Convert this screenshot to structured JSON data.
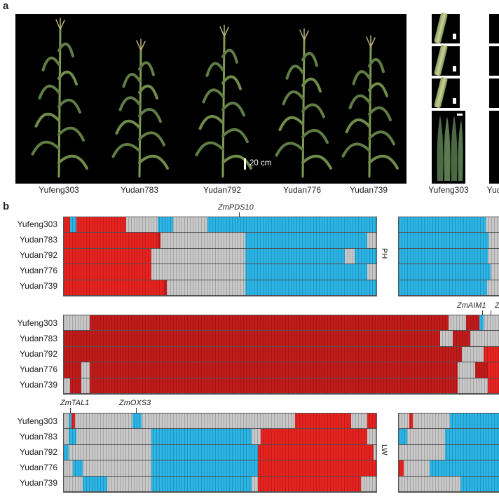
{
  "panel_a": {
    "letter": "a",
    "scale_label": "20 cm",
    "plants": [
      "Yufeng303",
      "Yudan783",
      "Yudan792",
      "Yudan776",
      "Yudan739"
    ],
    "right_labels": [
      "Yufeng303",
      "Yud"
    ]
  },
  "panel_b": {
    "letter": "b",
    "rows": [
      "Yufeng303",
      "Yudan783",
      "Yudan792",
      "Yudan776",
      "Yudan739"
    ],
    "colors": {
      "red": "#e8231f",
      "darkred": "#c21b1b",
      "blue": "#2bb5e6",
      "grey": "#c8c8c8"
    },
    "blocks": [
      {
        "trait": "PH",
        "genes": [
          "ZmPDS10"
        ],
        "rows": [
          [
            [
              "blue",
              0,
              0.015
            ],
            [
              "red",
              0,
              0.02
            ],
            [
              "blue",
              0.02,
              0.04
            ],
            [
              "red",
              0.04,
              0.2
            ],
            [
              "grey",
              0.2,
              0.3
            ],
            [
              "blue",
              0.3,
              0.35
            ],
            [
              "grey",
              0.35,
              0.46
            ],
            [
              "blue",
              0.46,
              0.6
            ],
            [
              "blue",
              0.6,
              1
            ]
          ],
          [
            [
              "red",
              0,
              0.3
            ],
            [
              "darkred",
              0.3,
              0.31
            ],
            [
              "grey",
              0.31,
              0.58
            ],
            [
              "blue",
              0.58,
              0.97
            ],
            [
              "grey",
              0.97,
              1
            ]
          ],
          [
            [
              "red",
              0,
              0.28
            ],
            [
              "grey",
              0.28,
              0.58
            ],
            [
              "blue",
              0.58,
              0.9
            ],
            [
              "grey",
              0.9,
              0.93
            ],
            [
              "blue",
              0.93,
              1
            ]
          ],
          [
            [
              "red",
              0,
              0.28
            ],
            [
              "grey",
              0.28,
              0.58
            ],
            [
              "blue",
              0.58,
              0.97
            ],
            [
              "grey",
              0.97,
              1
            ]
          ],
          [
            [
              "red",
              0,
              0.32
            ],
            [
              "darkred",
              0.32,
              0.33
            ],
            [
              "grey",
              0.33,
              0.58
            ],
            [
              "blue",
              0.58,
              1
            ]
          ]
        ]
      },
      {
        "trait": "",
        "genes": [
          "ZmAIM1",
          "Z"
        ],
        "rows": [
          [
            [
              "grey",
              0,
              0.06
            ],
            [
              "darkred",
              0.06,
              0.88
            ],
            [
              "grey",
              0.88,
              0.92
            ],
            [
              "darkred",
              0.92,
              0.95
            ],
            [
              "blue",
              0.95,
              0.96
            ],
            [
              "grey",
              0.96,
              1
            ]
          ],
          [
            [
              "darkred",
              0,
              0.86
            ],
            [
              "grey",
              0.86,
              0.89
            ],
            [
              "darkred",
              0.89,
              0.93
            ],
            [
              "grey",
              0.93,
              1
            ]
          ],
          [
            [
              "darkred",
              0,
              0.91
            ],
            [
              "grey",
              0.91,
              0.96
            ],
            [
              "red",
              0.96,
              1
            ]
          ],
          [
            [
              "darkred",
              0,
              0.04
            ],
            [
              "grey",
              0.04,
              0.06
            ],
            [
              "darkred",
              0.06,
              0.9
            ],
            [
              "grey",
              0.9,
              0.94
            ],
            [
              "darkred",
              0.94,
              0.97
            ],
            [
              "red",
              0.97,
              1
            ]
          ],
          [
            [
              "grey",
              0,
              0.015
            ],
            [
              "darkred",
              0.015,
              0.04
            ],
            [
              "grey",
              0.04,
              0.06
            ],
            [
              "darkred",
              0.06,
              0.9
            ],
            [
              "grey",
              0.9,
              0.97
            ],
            [
              "red",
              0.97,
              1
            ]
          ]
        ]
      },
      {
        "trait": "LW",
        "genes": [
          "ZmTAL1",
          "ZmOXS3"
        ],
        "rows": [
          [
            [
              "grey",
              0,
              0.015
            ],
            [
              "blue",
              0.015,
              0.025
            ],
            [
              "red",
              0.025,
              0.035
            ],
            [
              "grey",
              0.035,
              0.22
            ],
            [
              "blue",
              0.22,
              0.25
            ],
            [
              "grey",
              0.25,
              0.74
            ],
            [
              "red",
              0.74,
              0.92
            ],
            [
              "grey",
              0.92,
              0.97
            ],
            [
              "red",
              0.97,
              1
            ]
          ],
          [
            [
              "grey",
              0,
              0.015
            ],
            [
              "blue",
              0.015,
              0.04
            ],
            [
              "grey",
              0.04,
              0.28
            ],
            [
              "blue",
              0.28,
              0.6
            ],
            [
              "grey",
              0.6,
              0.63
            ],
            [
              "red",
              0.63,
              0.97
            ],
            [
              "grey",
              0.97,
              1
            ]
          ],
          [
            [
              "blue",
              0,
              0.015
            ],
            [
              "grey",
              0.015,
              0.28
            ],
            [
              "blue",
              0.28,
              0.62
            ],
            [
              "red",
              0.62,
              0.99
            ],
            [
              "grey",
              0.99,
              1
            ]
          ],
          [
            [
              "grey",
              0,
              0.03
            ],
            [
              "blue",
              0.03,
              0.06
            ],
            [
              "grey",
              0.06,
              0.28
            ],
            [
              "blue",
              0.28,
              0.62
            ],
            [
              "red",
              0.62,
              1
            ]
          ],
          [
            [
              "grey",
              0,
              0.06
            ],
            [
              "blue",
              0.06,
              0.14
            ],
            [
              "grey",
              0.14,
              0.28
            ],
            [
              "blue",
              0.28,
              0.6
            ],
            [
              "grey",
              0.6,
              0.62
            ],
            [
              "red",
              0.62,
              0.95
            ],
            [
              "grey",
              0.95,
              1
            ]
          ]
        ]
      }
    ],
    "right_blocks": [
      {
        "rows": [
          [
            [
              "blue",
              0,
              0.85
            ],
            [
              "grey",
              0.85,
              1
            ]
          ],
          [
            [
              "blue",
              0,
              0.88
            ],
            [
              "grey",
              0.88,
              1
            ]
          ],
          [
            [
              "blue",
              0,
              0.87
            ],
            [
              "grey",
              0.87,
              1
            ]
          ],
          [
            [
              "blue",
              0,
              0.9
            ],
            [
              "grey",
              0.9,
              1
            ]
          ],
          [
            [
              "blue",
              0,
              0.86
            ],
            [
              "grey",
              0.86,
              1
            ]
          ]
        ]
      },
      {
        "rows": [
          [
            [
              "grey",
              0,
              0.1
            ],
            [
              "red",
              0.1,
              0.14
            ],
            [
              "grey",
              0.14,
              0.5
            ],
            [
              "blue",
              0.5,
              1
            ]
          ],
          [
            [
              "blue",
              0,
              0.08
            ],
            [
              "grey",
              0.08,
              0.45
            ],
            [
              "blue",
              0.45,
              1
            ]
          ],
          [
            [
              "grey",
              0,
              0.45
            ],
            [
              "blue",
              0.45,
              1
            ]
          ],
          [
            [
              "red",
              0,
              0.05
            ],
            [
              "grey",
              0.05,
              0.3
            ],
            [
              "blue",
              0.3,
              1
            ]
          ],
          [
            [
              "grey",
              0,
              0.6
            ],
            [
              "blue",
              0.6,
              1
            ]
          ]
        ]
      }
    ]
  }
}
